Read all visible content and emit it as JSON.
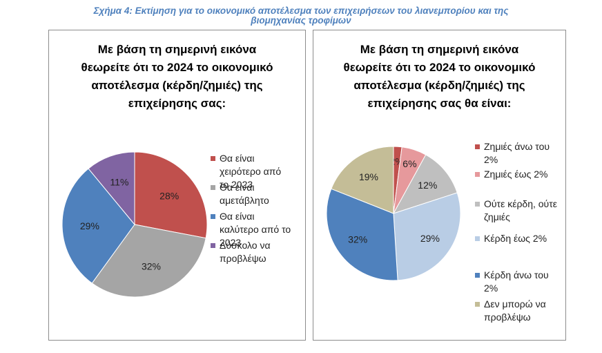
{
  "figure_title_line1": "Σχήμα 4: Εκτίμηση για το οικονομικό αποτέλεσμα των επιχειρήσεων του λιανεμπορίου και της",
  "figure_title_line2": "βιομηχανίας τροφίμων",
  "chart_data": [
    {
      "type": "pie",
      "title_lines": [
        "Με βάση τη σημερινή εικόνα",
        "θεωρείτε ότι το 2024 το οικονομικό",
        "αποτέλεσμα (κέρδη/ζημιές) της",
        "επιχείρησης σας:"
      ],
      "categories": [
        "Θα είναι χειρότερο από το 2023",
        "Θα είναι αμετάβλητο",
        "Θα είναι καλύτερο από το 2023",
        "Δύσκολο να προβλέψω"
      ],
      "values": [
        28,
        32,
        29,
        11
      ],
      "labels": [
        "28%",
        "32%",
        "29%",
        "11%"
      ],
      "colors": [
        "#c0504d",
        "#a5a5a5",
        "#4f81bd",
        "#8064a2"
      ],
      "legend_position": "right"
    },
    {
      "type": "pie",
      "title_lines": [
        "Με βάση τη σημερινή εικόνα",
        "θεωρείτε ότι το 2024 το οικονομικό",
        "αποτέλεσμα (κέρδη/ζημιές) της",
        "επιχείρησης σας θα είναι:"
      ],
      "categories": [
        "Ζημιές άνω του 2%",
        "Ζημιές έως 2%",
        "Ούτε κέρδη, ούτε ζημιές",
        "Κέρδη έως 2%",
        "Κέρδη άνω του 2%",
        "Δεν μπορώ να προβλέψω"
      ],
      "values": [
        2,
        6,
        12,
        29,
        32,
        19
      ],
      "labels": [
        "2%",
        "6%",
        "12%",
        "29%",
        "32%",
        "19%"
      ],
      "colors": [
        "#c0504d",
        "#e6999c",
        "#bfbfbf",
        "#b9cde5",
        "#4f81bd",
        "#c4bd97"
      ],
      "legend_position": "right"
    }
  ]
}
